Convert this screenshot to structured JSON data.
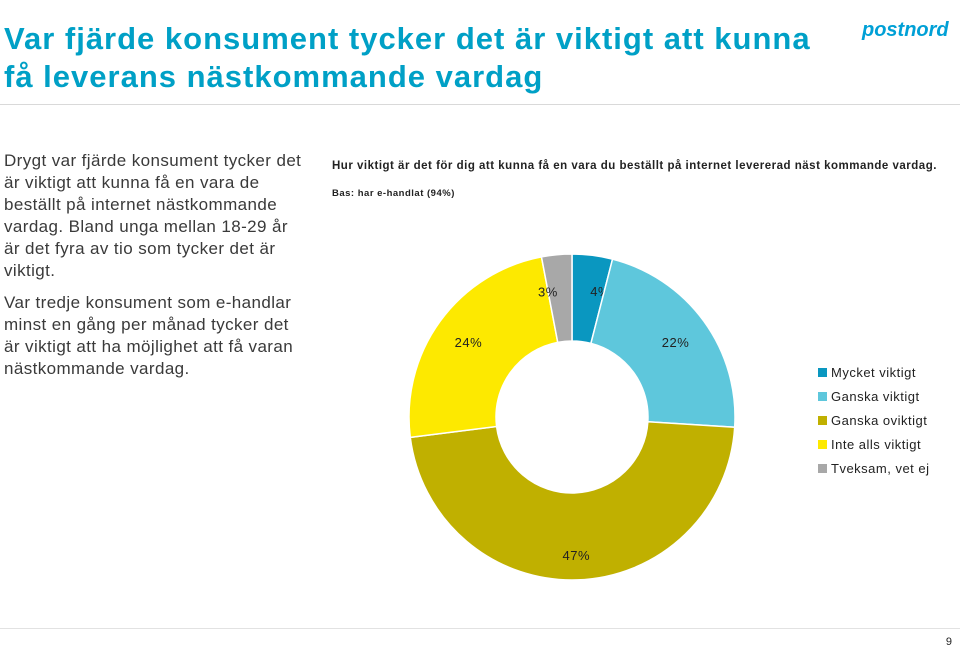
{
  "slide": {
    "title": "Var fjärde konsument tycker det är viktigt att kunna få leverans nästkommande vardag",
    "logo_text": "postnord",
    "paragraphs": [
      "Drygt var fjärde konsument tycker det är viktigt att kunna få en vara de beställt på internet nästkommande vardag. Bland unga mellan 18-29 år är det fyra av tio som tycker det är viktigt.",
      "Var tredje konsument som e-handlar minst en gång per månad tycker det är viktigt att ha möjlighet att få varan nästkommande vardag."
    ],
    "page_number": "9",
    "colors": {
      "title": "#00a0c6",
      "logo": "#00a0d6"
    }
  },
  "chart_data": {
    "type": "pie",
    "donut": true,
    "title": "Hur viktigt är det för dig att kunna få en vara du beställt på internet levererad näst kommande vardag.",
    "subtitle": "Bas: har e-handlat (94%)",
    "legend_position": "right",
    "slices": [
      {
        "label": "Mycket viktigt",
        "value": 4,
        "display": "4%",
        "color": "#0a97c0"
      },
      {
        "label": "Ganska viktigt",
        "value": 22,
        "display": "22%",
        "color": "#5ec7dc"
      },
      {
        "label": "Ganska oviktigt",
        "value": 47,
        "display": "47%",
        "color": "#c0b000"
      },
      {
        "label": "Inte alls viktigt",
        "value": 24,
        "display": "24%",
        "color": "#fde900"
      },
      {
        "label": "Tveksam, vet ej",
        "value": 3,
        "display": "3%",
        "color": "#a8a8a8"
      }
    ]
  }
}
